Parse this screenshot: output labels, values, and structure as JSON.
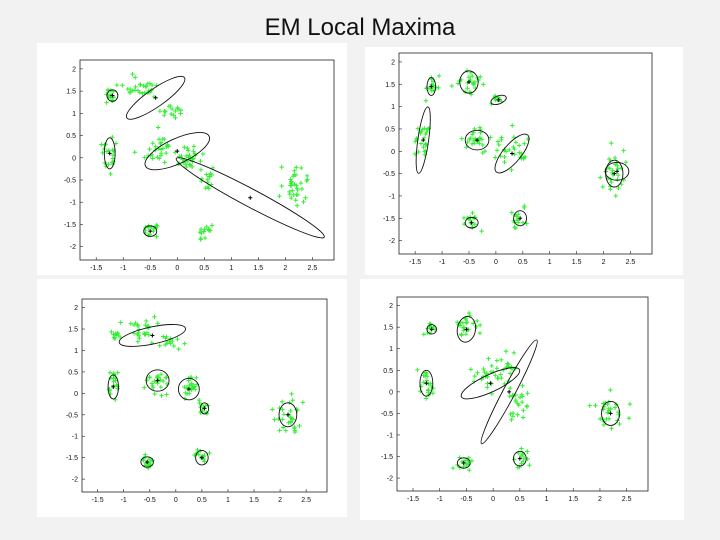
{
  "slide_title": "EM Local Maxima",
  "colors": {
    "points": "#33ee33",
    "ellipse": "#111111",
    "background": "#f2f2f2"
  },
  "chart_data": [
    {
      "type": "scatter",
      "xlim": [
        -1.8,
        2.9
      ],
      "ylim": [
        -2.3,
        2.2
      ],
      "x_ticks": [
        "-1.5",
        "-1",
        "-0.5",
        "0",
        "0.5",
        "1",
        "1.5",
        "2",
        "2.5"
      ],
      "y_ticks": [
        "2",
        "1.5",
        "1",
        "0.5",
        "0",
        "-0.5",
        "-1",
        "-1.5",
        "-2"
      ],
      "clusters": [
        {
          "cx": -1.2,
          "cy": 1.4,
          "sx": 0.06,
          "sy": 0.08,
          "n": 15
        },
        {
          "cx": -1.25,
          "cy": 0.05,
          "sx": 0.07,
          "sy": 0.2,
          "n": 20
        },
        {
          "cx": -0.65,
          "cy": 1.55,
          "sx": 0.15,
          "sy": 0.12,
          "n": 30
        },
        {
          "cx": -0.1,
          "cy": 1.1,
          "sx": 0.12,
          "sy": 0.1,
          "n": 15
        },
        {
          "cx": -0.3,
          "cy": 0.2,
          "sx": 0.2,
          "sy": 0.15,
          "n": 30
        },
        {
          "cx": 0.2,
          "cy": 0.0,
          "sx": 0.15,
          "sy": 0.15,
          "n": 30
        },
        {
          "cx": 0.55,
          "cy": -0.45,
          "sx": 0.08,
          "sy": 0.12,
          "n": 15
        },
        {
          "cx": -0.5,
          "cy": -1.65,
          "sx": 0.08,
          "sy": 0.1,
          "n": 15
        },
        {
          "cx": 0.5,
          "cy": -1.65,
          "sx": 0.08,
          "sy": 0.12,
          "n": 15
        },
        {
          "cx": 2.15,
          "cy": -0.6,
          "sx": 0.15,
          "sy": 0.25,
          "n": 35
        }
      ],
      "ellipses": [
        {
          "cx": -1.2,
          "cy": 1.4,
          "rx": 0.1,
          "ry": 0.13,
          "angle": 0
        },
        {
          "cx": -1.25,
          "cy": 0.1,
          "rx": 0.1,
          "ry": 0.35,
          "angle": 0
        },
        {
          "cx": -0.4,
          "cy": 1.35,
          "rx": 0.65,
          "ry": 0.2,
          "angle": -35
        },
        {
          "cx": 0.0,
          "cy": 0.15,
          "rx": 0.65,
          "ry": 0.28,
          "angle": -25
        },
        {
          "cx": -0.5,
          "cy": -1.65,
          "rx": 0.12,
          "ry": 0.12,
          "angle": 0
        },
        {
          "cx": 1.35,
          "cy": -0.9,
          "rx": 1.55,
          "ry": 0.2,
          "angle": 28
        }
      ]
    },
    {
      "type": "scatter",
      "xlim": [
        -1.8,
        2.9
      ],
      "ylim": [
        -2.3,
        2.2
      ],
      "x_ticks": [
        "-1.5",
        "-1",
        "-0.5",
        "0",
        "0.5",
        "1",
        "1.5",
        "2",
        "2.5"
      ],
      "y_ticks": [
        "2",
        "1.5",
        "1",
        "0.5",
        "0",
        "-0.5",
        "-1",
        "-1.5",
        "-2"
      ],
      "clusters": [
        {
          "cx": -1.2,
          "cy": 1.5,
          "sx": 0.05,
          "sy": 0.1,
          "n": 15
        },
        {
          "cx": -1.35,
          "cy": 0.25,
          "sx": 0.07,
          "sy": 0.25,
          "n": 25
        },
        {
          "cx": -0.5,
          "cy": 1.55,
          "sx": 0.12,
          "sy": 0.15,
          "n": 25
        },
        {
          "cx": 0.0,
          "cy": 1.15,
          "sx": 0.06,
          "sy": 0.06,
          "n": 10
        },
        {
          "cx": -0.35,
          "cy": 0.25,
          "sx": 0.14,
          "sy": 0.14,
          "n": 25
        },
        {
          "cx": 0.25,
          "cy": 0.0,
          "sx": 0.2,
          "sy": 0.18,
          "n": 30
        },
        {
          "cx": -0.45,
          "cy": -1.6,
          "sx": 0.08,
          "sy": 0.1,
          "n": 15
        },
        {
          "cx": 0.45,
          "cy": -1.5,
          "sx": 0.08,
          "sy": 0.12,
          "n": 15
        },
        {
          "cx": 2.2,
          "cy": -0.5,
          "sx": 0.15,
          "sy": 0.22,
          "n": 30
        }
      ],
      "ellipses": [
        {
          "cx": -1.2,
          "cy": 1.45,
          "rx": 0.08,
          "ry": 0.2,
          "angle": 0
        },
        {
          "cx": -1.35,
          "cy": 0.25,
          "rx": 0.1,
          "ry": 0.75,
          "angle": 8
        },
        {
          "cx": -0.5,
          "cy": 1.55,
          "rx": 0.17,
          "ry": 0.25,
          "angle": 0
        },
        {
          "cx": 0.05,
          "cy": 1.15,
          "rx": 0.15,
          "ry": 0.09,
          "angle": -20
        },
        {
          "cx": -0.35,
          "cy": 0.25,
          "rx": 0.22,
          "ry": 0.22,
          "angle": 0
        },
        {
          "cx": 0.3,
          "cy": -0.05,
          "rx": 0.45,
          "ry": 0.2,
          "angle": -50
        },
        {
          "cx": -0.45,
          "cy": -1.6,
          "rx": 0.12,
          "ry": 0.12,
          "angle": 0
        },
        {
          "cx": 0.45,
          "cy": -1.5,
          "rx": 0.12,
          "ry": 0.17,
          "angle": 0
        },
        {
          "cx": 2.2,
          "cy": -0.5,
          "rx": 0.16,
          "ry": 0.3,
          "angle": 0
        },
        {
          "cx": 2.25,
          "cy": -0.45,
          "rx": 0.22,
          "ry": 0.2,
          "angle": 0
        }
      ]
    },
    {
      "type": "scatter",
      "xlim": [
        -1.8,
        2.9
      ],
      "ylim": [
        -2.3,
        2.2
      ],
      "x_ticks": [
        "-1.5",
        "-1",
        "-0.5",
        "0",
        "0.5",
        "1",
        "1.5",
        "2",
        "2.5"
      ],
      "y_ticks": [
        "2",
        "1.5",
        "1",
        "0.5",
        "0",
        "-0.5",
        "-1",
        "-1.5",
        "-2"
      ],
      "clusters": [
        {
          "cx": -1.15,
          "cy": 1.4,
          "sx": 0.06,
          "sy": 0.08,
          "n": 12
        },
        {
          "cx": -0.65,
          "cy": 1.55,
          "sx": 0.15,
          "sy": 0.12,
          "n": 25
        },
        {
          "cx": -0.1,
          "cy": 1.2,
          "sx": 0.1,
          "sy": 0.1,
          "n": 15
        },
        {
          "cx": -1.2,
          "cy": 0.2,
          "sx": 0.07,
          "sy": 0.2,
          "n": 20
        },
        {
          "cx": -0.35,
          "cy": 0.3,
          "sx": 0.14,
          "sy": 0.16,
          "n": 25
        },
        {
          "cx": 0.25,
          "cy": 0.1,
          "sx": 0.12,
          "sy": 0.15,
          "n": 25
        },
        {
          "cx": 0.55,
          "cy": -0.35,
          "sx": 0.06,
          "sy": 0.1,
          "n": 12
        },
        {
          "cx": -0.55,
          "cy": -1.6,
          "sx": 0.08,
          "sy": 0.1,
          "n": 15
        },
        {
          "cx": 0.5,
          "cy": -1.5,
          "sx": 0.08,
          "sy": 0.12,
          "n": 15
        },
        {
          "cx": 2.15,
          "cy": -0.5,
          "sx": 0.15,
          "sy": 0.22,
          "n": 30
        }
      ],
      "ellipses": [
        {
          "cx": -0.45,
          "cy": 1.35,
          "rx": 0.65,
          "ry": 0.2,
          "angle": -12
        },
        {
          "cx": -1.2,
          "cy": 0.15,
          "rx": 0.1,
          "ry": 0.28,
          "angle": 0
        },
        {
          "cx": -0.35,
          "cy": 0.3,
          "rx": 0.22,
          "ry": 0.25,
          "angle": 0
        },
        {
          "cx": 0.25,
          "cy": 0.1,
          "rx": 0.2,
          "ry": 0.25,
          "angle": 0
        },
        {
          "cx": 0.55,
          "cy": -0.35,
          "rx": 0.08,
          "ry": 0.13,
          "angle": 0
        },
        {
          "cx": -0.55,
          "cy": -1.6,
          "rx": 0.12,
          "ry": 0.12,
          "angle": 0
        },
        {
          "cx": 0.5,
          "cy": -1.5,
          "rx": 0.12,
          "ry": 0.17,
          "angle": 0
        },
        {
          "cx": 2.15,
          "cy": -0.5,
          "rx": 0.17,
          "ry": 0.28,
          "angle": 0
        }
      ]
    },
    {
      "type": "scatter",
      "xlim": [
        -1.8,
        2.9
      ],
      "ylim": [
        -2.3,
        2.2
      ],
      "x_ticks": [
        "-1.5",
        "-1",
        "-0.5",
        "0",
        "0.5",
        "1",
        "1.5",
        "2",
        "2.5"
      ],
      "y_ticks": [
        "2",
        "1.5",
        "1",
        "0.5",
        "0",
        "-0.5",
        "-1",
        "-1.5",
        "-2"
      ],
      "clusters": [
        {
          "cx": -1.15,
          "cy": 1.45,
          "sx": 0.06,
          "sy": 0.08,
          "n": 12
        },
        {
          "cx": -0.5,
          "cy": 1.55,
          "sx": 0.12,
          "sy": 0.15,
          "n": 25
        },
        {
          "cx": -1.25,
          "cy": 0.2,
          "sx": 0.08,
          "sy": 0.2,
          "n": 20
        },
        {
          "cx": -0.1,
          "cy": 0.35,
          "sx": 0.18,
          "sy": 0.15,
          "n": 30
        },
        {
          "cx": 0.3,
          "cy": 0.7,
          "sx": 0.06,
          "sy": 0.15,
          "n": 12
        },
        {
          "cx": 0.45,
          "cy": -0.25,
          "sx": 0.12,
          "sy": 0.18,
          "n": 25
        },
        {
          "cx": -0.55,
          "cy": -1.65,
          "sx": 0.08,
          "sy": 0.1,
          "n": 15
        },
        {
          "cx": 0.5,
          "cy": -1.55,
          "sx": 0.08,
          "sy": 0.12,
          "n": 15
        },
        {
          "cx": 2.2,
          "cy": -0.5,
          "sx": 0.15,
          "sy": 0.22,
          "n": 30
        }
      ],
      "ellipses": [
        {
          "cx": -1.15,
          "cy": 1.45,
          "rx": 0.09,
          "ry": 0.11,
          "angle": 0
        },
        {
          "cx": -0.5,
          "cy": 1.45,
          "rx": 0.17,
          "ry": 0.3,
          "angle": 10
        },
        {
          "cx": -1.25,
          "cy": 0.2,
          "rx": 0.12,
          "ry": 0.3,
          "angle": 0
        },
        {
          "cx": -0.05,
          "cy": 0.2,
          "rx": 0.6,
          "ry": 0.2,
          "angle": -25
        },
        {
          "cx": 0.3,
          "cy": 0.0,
          "rx": 1.1,
          "ry": 0.14,
          "angle": -62
        },
        {
          "cx": -0.55,
          "cy": -1.65,
          "rx": 0.12,
          "ry": 0.12,
          "angle": 0
        },
        {
          "cx": 0.5,
          "cy": -1.55,
          "rx": 0.12,
          "ry": 0.17,
          "angle": 0
        },
        {
          "cx": 2.2,
          "cy": -0.5,
          "rx": 0.17,
          "ry": 0.28,
          "angle": 0
        }
      ]
    }
  ]
}
